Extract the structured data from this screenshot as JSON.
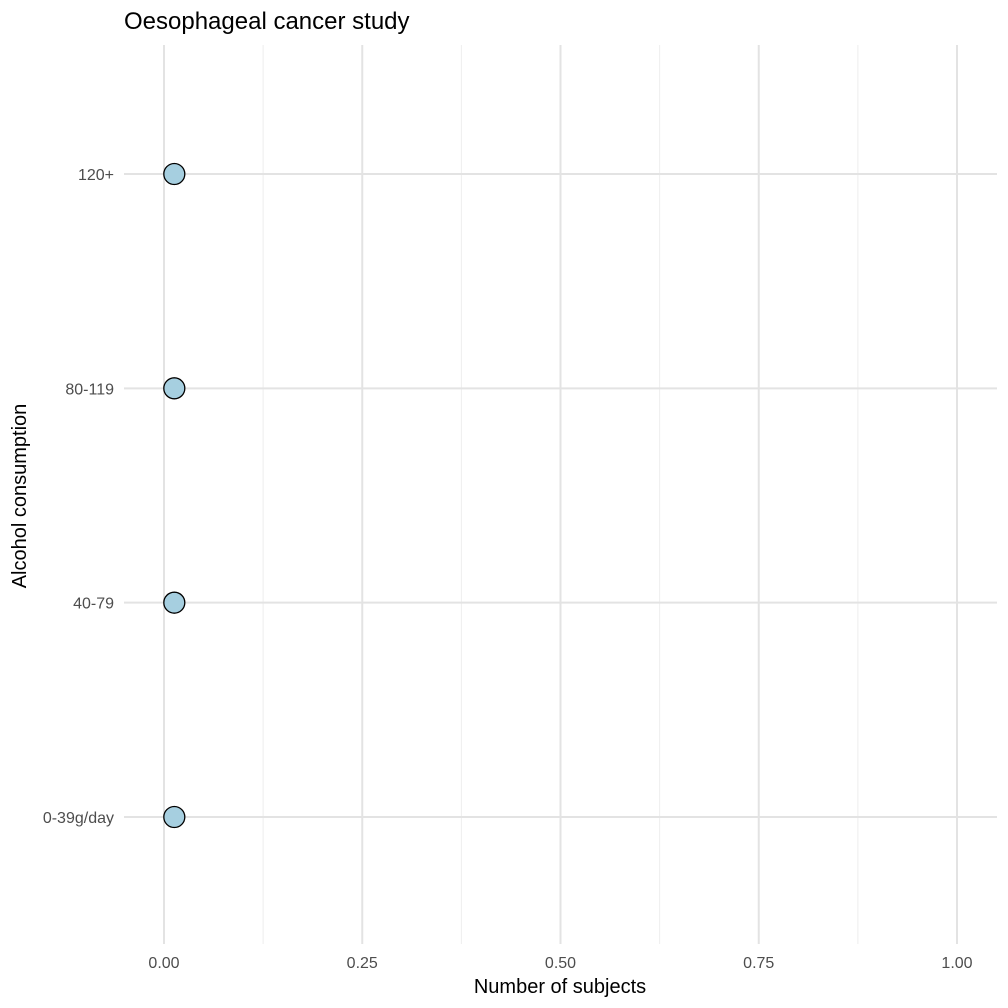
{
  "chart_data": {
    "type": "scatter",
    "title": "Oesophageal cancer study",
    "xlabel": "Number of subjects",
    "ylabel": "Alcohol consumption",
    "categories": [
      "0-39g/day",
      "40-79",
      "80-119",
      "120+"
    ],
    "values": [
      0.013,
      0.013,
      0.013,
      0.013
    ],
    "xlim": [
      0,
      1
    ],
    "xticks": [
      "0.00",
      "0.25",
      "0.50",
      "0.75",
      "1.00"
    ],
    "grid": true,
    "legend": "none",
    "point_color": "#a6cfe0",
    "point_outline": "#000000"
  }
}
